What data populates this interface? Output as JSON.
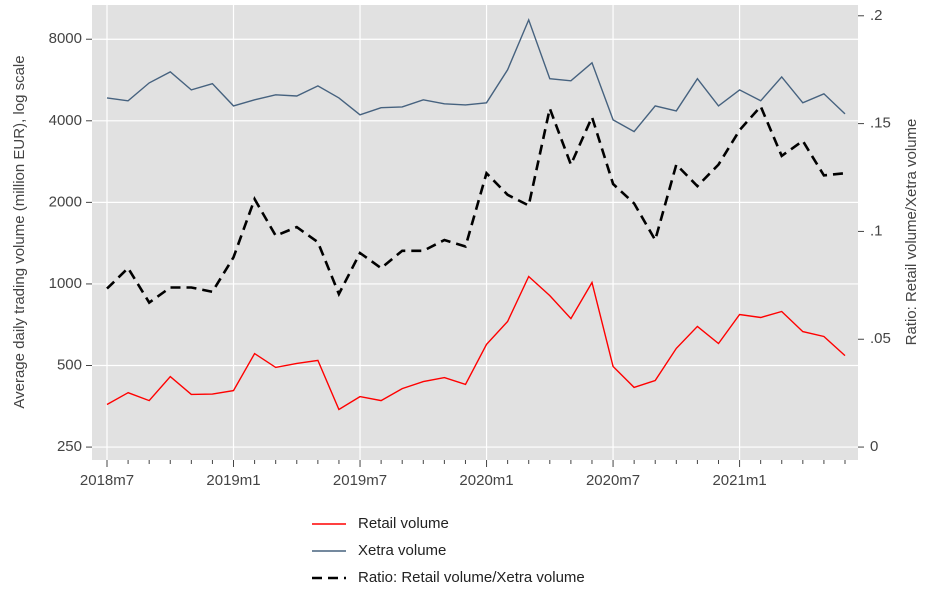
{
  "chart_data": {
    "type": "line",
    "categories": [
      "2018m7",
      null,
      null,
      null,
      null,
      null,
      "2019m1",
      null,
      null,
      null,
      null,
      null,
      "2019m7",
      null,
      null,
      null,
      null,
      null,
      "2020m1",
      null,
      null,
      null,
      null,
      null,
      "2020m7",
      null,
      null,
      null,
      null,
      null,
      "2021m1",
      null,
      null,
      null,
      null,
      null
    ],
    "ylabel": "Average daily trading volume (million EUR), log scale",
    "y2label": "Ratio: Retail volume/Xetra volume",
    "ylog": true,
    "ylim": [
      224,
      10700
    ],
    "yticks": [
      250,
      500,
      1000,
      2000,
      4000,
      8000
    ],
    "y2lim": [
      -0.006,
      0.205
    ],
    "y2ticks": [
      0,
      {
        "value": 0.05,
        "label": ".05"
      },
      {
        "value": 0.1,
        "label": ".1"
      },
      {
        "value": 0.15,
        "label": ".15"
      },
      {
        "value": 0.2,
        "label": ".2"
      }
    ],
    "grid": true,
    "legend": "bottom",
    "series": [
      {
        "name": "Retail volume",
        "color": "#ff0000",
        "style": "solid",
        "values": [
          359,
          397,
          371,
          455,
          391,
          392,
          404,
          553,
          492,
          509,
          522,
          344,
          384,
          371,
          411,
          436,
          451,
          426,
          598,
          727,
          1065,
          906,
          745,
          1012,
          496,
          415,
          440,
          578,
          697,
          603,
          771,
          752,
          791,
          667,
          640,
          544
        ]
      },
      {
        "name": "Xetra volume",
        "color": "#46627f",
        "style": "solid",
        "values": [
          4860,
          4740,
          5520,
          6060,
          5200,
          5480,
          4540,
          4780,
          4990,
          4940,
          5380,
          4860,
          4210,
          4470,
          4500,
          4780,
          4620,
          4580,
          4660,
          6170,
          9430,
          5720,
          5620,
          6550,
          4030,
          3650,
          4540,
          4350,
          5720,
          4540,
          5200,
          4740,
          5810,
          4660,
          5030,
          4240
        ]
      },
      {
        "name": "Ratio: Retail volume/Xetra volume",
        "color": "#000000",
        "style": "dashed",
        "axis": "y2",
        "values": [
          0.0735,
          0.083,
          0.067,
          0.074,
          0.074,
          0.072,
          0.088,
          0.115,
          0.098,
          0.102,
          0.095,
          0.071,
          0.09,
          0.083,
          0.091,
          0.091,
          0.096,
          0.093,
          0.127,
          0.117,
          0.112,
          0.157,
          0.131,
          0.153,
          0.122,
          0.113,
          0.096,
          0.131,
          0.121,
          0.131,
          0.147,
          0.158,
          0.135,
          0.142,
          0.126,
          0.127
        ]
      }
    ]
  }
}
